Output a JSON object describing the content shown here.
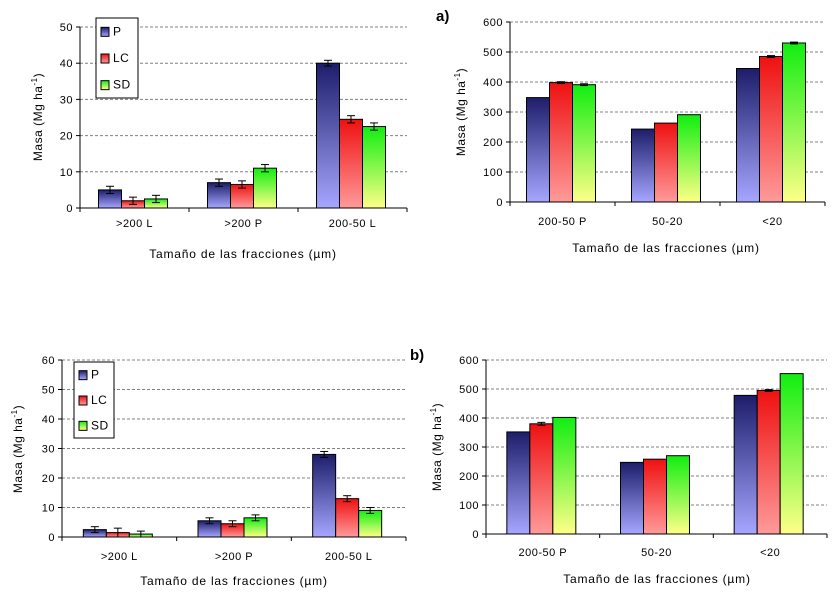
{
  "panel_labels": [
    "a)",
    "b)"
  ],
  "colors": {
    "P": {
      "top": "#1d1d6b",
      "bottom": "#a6a6ff"
    },
    "LC": {
      "top": "#ee1111",
      "bottom": "#ff9a9a"
    },
    "SD": {
      "top": "#11ee11",
      "bottom": "#ffff88"
    }
  },
  "chart_data": [
    {
      "type": "bar",
      "panel": "a)",
      "categories": [
        ">200 L",
        ">200 P",
        "200-50 L"
      ],
      "series": [
        {
          "name": "P",
          "values": [
            5.0,
            7.0,
            40.0
          ],
          "errors": [
            1.0,
            1.0,
            0.8
          ]
        },
        {
          "name": "LC",
          "values": [
            2.0,
            6.5,
            24.5
          ],
          "errors": [
            1.0,
            1.0,
            1.0
          ]
        },
        {
          "name": "SD",
          "values": [
            2.5,
            11.0,
            22.5
          ],
          "errors": [
            1.0,
            1.0,
            1.0
          ]
        }
      ],
      "xlabel": "Tamaño de las fracciones (µm)",
      "ylabel": "Masa (Mg ha",
      "ylabel_sup": "-1",
      "ylabel_end": ")",
      "ylim": [
        0,
        50
      ],
      "yticks": [
        0,
        10,
        20,
        30,
        40,
        50
      ],
      "legend": [
        "P",
        "LC",
        "SD"
      ],
      "legend_position": "top-left",
      "grid": true
    },
    {
      "type": "bar",
      "panel": "a)",
      "categories": [
        "200-50 P",
        "50-20",
        "<20"
      ],
      "series": [
        {
          "name": "P",
          "values": [
            348,
            243,
            445
          ],
          "errors": [
            0,
            0,
            0
          ]
        },
        {
          "name": "LC",
          "values": [
            398,
            263,
            485
          ],
          "errors": [
            3,
            0,
            3
          ]
        },
        {
          "name": "SD",
          "values": [
            391,
            291,
            530
          ],
          "errors": [
            3,
            0,
            3
          ]
        }
      ],
      "xlabel": "Tamaño de las fracciones (µm)",
      "ylabel": "Masa (Mg ha",
      "ylabel_sup": "-1",
      "ylabel_end": ")",
      "ylim": [
        0,
        600
      ],
      "yticks": [
        0,
        100,
        200,
        300,
        400,
        500,
        600
      ],
      "legend": [],
      "grid": true
    },
    {
      "type": "bar",
      "panel": "b)",
      "categories": [
        ">200 L",
        ">200 P",
        "200-50 L"
      ],
      "series": [
        {
          "name": "P",
          "values": [
            2.5,
            5.5,
            28.0
          ],
          "errors": [
            1.0,
            1.0,
            1.0
          ]
        },
        {
          "name": "LC",
          "values": [
            1.5,
            4.5,
            13.0
          ],
          "errors": [
            1.5,
            1.0,
            1.0
          ]
        },
        {
          "name": "SD",
          "values": [
            1.0,
            6.5,
            9.0
          ],
          "errors": [
            1.0,
            1.0,
            1.0
          ]
        }
      ],
      "xlabel": "Tamaño de las fracciones (µm)",
      "ylabel": "Masa (Mg ha",
      "ylabel_sup": "-1",
      "ylabel_end": ")",
      "ylim": [
        0,
        60
      ],
      "yticks": [
        0,
        10,
        20,
        30,
        40,
        50,
        60
      ],
      "legend": [
        "P",
        "LC",
        "SD"
      ],
      "legend_position": "top-left",
      "grid": true
    },
    {
      "type": "bar",
      "panel": "b)",
      "categories": [
        "200-50 P",
        "50-20",
        "<20"
      ],
      "series": [
        {
          "name": "P",
          "values": [
            352,
            247,
            478
          ],
          "errors": [
            0,
            0,
            0
          ]
        },
        {
          "name": "LC",
          "values": [
            380,
            258,
            495
          ],
          "errors": [
            5,
            0,
            3
          ]
        },
        {
          "name": "SD",
          "values": [
            402,
            270,
            553
          ],
          "errors": [
            0,
            0,
            0
          ]
        }
      ],
      "xlabel": "Tamaño de las fracciones (µm)",
      "ylabel": "Masa (Mg ha",
      "ylabel_sup": "-1",
      "ylabel_end": ")",
      "ylim": [
        0,
        600
      ],
      "yticks": [
        0,
        100,
        200,
        300,
        400,
        500,
        600
      ],
      "legend": [],
      "grid": true
    }
  ]
}
